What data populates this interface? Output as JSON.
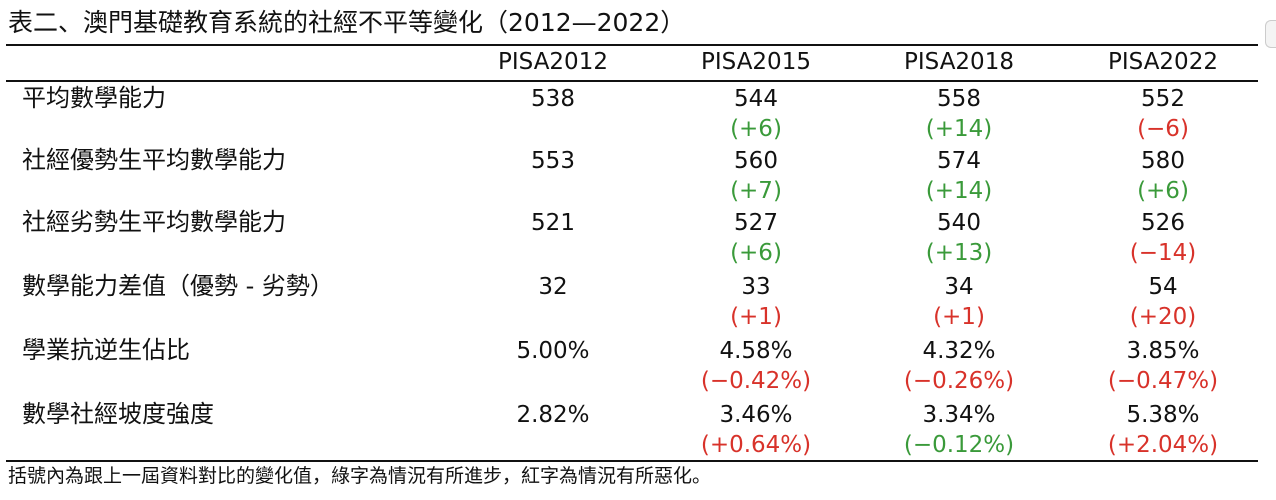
{
  "title": "表二、澳門基礎教育系統的社經不平等變化（2012—2022）",
  "columns": [
    "PISA2012",
    "PISA2015",
    "PISA2018",
    "PISA2022"
  ],
  "rows": [
    {
      "label": "平均數學能力",
      "values": [
        "538",
        "544",
        "558",
        "552"
      ],
      "changes": [
        null,
        "(+6)",
        "(+14)",
        "(−6)"
      ],
      "change_status": [
        null,
        "good",
        "good",
        "bad"
      ]
    },
    {
      "label": "社經優勢生平均數學能力",
      "values": [
        "553",
        "560",
        "574",
        "580"
      ],
      "changes": [
        null,
        "(+7)",
        "(+14)",
        "(+6)"
      ],
      "change_status": [
        null,
        "good",
        "good",
        "good"
      ]
    },
    {
      "label": "社經劣勢生平均數學能力",
      "values": [
        "521",
        "527",
        "540",
        "526"
      ],
      "changes": [
        null,
        "(+6)",
        "(+13)",
        "(−14)"
      ],
      "change_status": [
        null,
        "good",
        "good",
        "bad"
      ]
    },
    {
      "label": "數學能力差值（優勢 - 劣勢）",
      "values": [
        "32",
        "33",
        "34",
        "54"
      ],
      "changes": [
        null,
        "(+1)",
        "(+1)",
        "(+20)"
      ],
      "change_status": [
        null,
        "bad",
        "bad",
        "bad"
      ]
    },
    {
      "label": "學業抗逆生佔比",
      "values": [
        "5.00%",
        "4.58%",
        "4.32%",
        "3.85%"
      ],
      "changes": [
        null,
        "(−0.42%)",
        "(−0.26%)",
        "(−0.47%)"
      ],
      "change_status": [
        null,
        "bad",
        "bad",
        "bad"
      ]
    },
    {
      "label": "數學社經坡度強度",
      "values": [
        "2.82%",
        "3.46%",
        "3.34%",
        "5.38%"
      ],
      "changes": [
        null,
        "(+0.64%)",
        "(−0.12%)",
        "(+2.04%)"
      ],
      "change_status": [
        null,
        "bad",
        "good",
        "bad"
      ]
    }
  ],
  "note": "括號內為跟上一屆資料對比的變化值，綠字為情況有所進步，紅字為情況有所惡化。",
  "colors": {
    "improved": "#3a9a3a",
    "worsened": "#d8322a"
  }
}
